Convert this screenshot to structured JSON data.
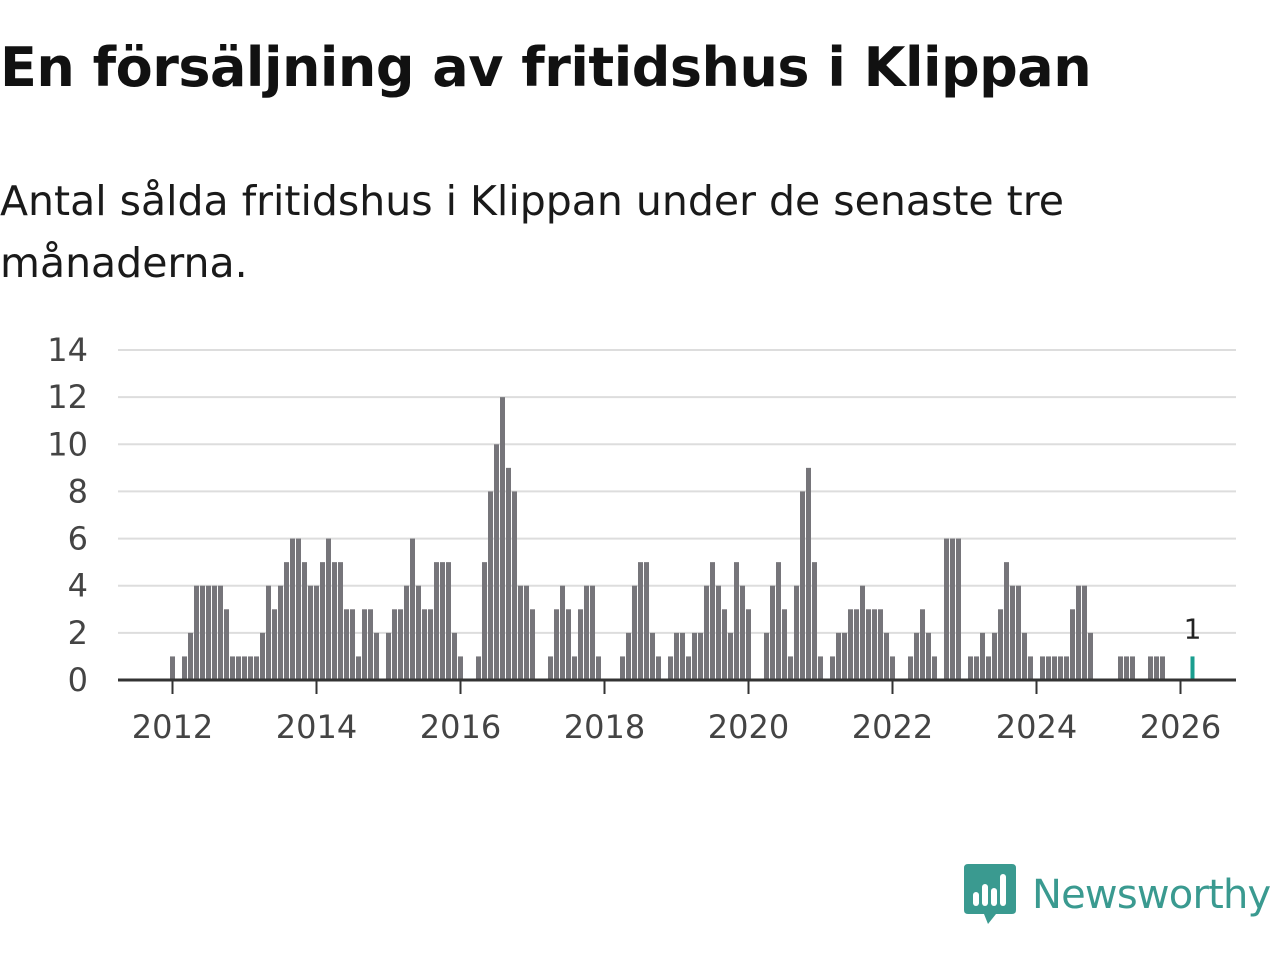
{
  "title": "En försäljning av fritidshus i Klippan",
  "subtitle": "Antal sålda fritidshus i Klippan under de senaste tre månaderna.",
  "brand": {
    "name": "Newsworthy",
    "color": "#3a9a90",
    "icon": "newsworthy-logo-icon"
  },
  "colors": {
    "bar": "#76757a",
    "highlight": "#1a9e8f",
    "grid": "#dddddd",
    "axis": "#333333"
  },
  "chart_data": {
    "type": "bar",
    "title": "En försäljning av fritidshus i Klippan",
    "xlabel": "",
    "ylabel": "",
    "ylim": [
      0,
      14
    ],
    "yticks": [
      "0",
      "2",
      "4",
      "6",
      "8",
      "10",
      "12",
      "14"
    ],
    "xticks": [
      "2012",
      "2014",
      "2016",
      "2018",
      "2020",
      "2022",
      "2024",
      "2026"
    ],
    "start_year": 2011,
    "start_month": 10,
    "grid": true,
    "highlight_label": "1",
    "values": [
      0,
      0,
      0,
      1,
      0,
      1,
      2,
      4,
      4,
      4,
      4,
      4,
      3,
      1,
      1,
      1,
      1,
      1,
      2,
      4,
      3,
      4,
      5,
      6,
      6,
      5,
      4,
      4,
      5,
      6,
      5,
      5,
      3,
      3,
      1,
      3,
      3,
      2,
      0,
      2,
      3,
      3,
      4,
      6,
      4,
      3,
      3,
      5,
      5,
      5,
      2,
      1,
      0,
      0,
      1,
      5,
      8,
      10,
      12,
      9,
      8,
      4,
      4,
      3,
      0,
      0,
      1,
      3,
      4,
      3,
      1,
      3,
      4,
      4,
      1,
      0,
      0,
      0,
      1,
      2,
      4,
      5,
      5,
      2,
      1,
      0,
      1,
      2,
      2,
      1,
      2,
      2,
      4,
      5,
      4,
      3,
      2,
      5,
      4,
      3,
      0,
      0,
      2,
      4,
      5,
      3,
      1,
      4,
      8,
      9,
      5,
      1,
      0,
      1,
      2,
      2,
      3,
      3,
      4,
      3,
      3,
      3,
      2,
      1,
      0,
      0,
      1,
      2,
      3,
      2,
      1,
      0,
      6,
      6,
      6,
      0,
      1,
      1,
      2,
      1,
      2,
      3,
      5,
      4,
      4,
      2,
      1,
      0,
      1,
      1,
      1,
      1,
      1,
      3,
      4,
      4,
      2,
      0,
      0,
      0,
      0,
      1,
      1,
      1,
      0,
      0,
      1,
      1,
      1,
      0,
      0,
      0,
      0,
      1
    ]
  }
}
